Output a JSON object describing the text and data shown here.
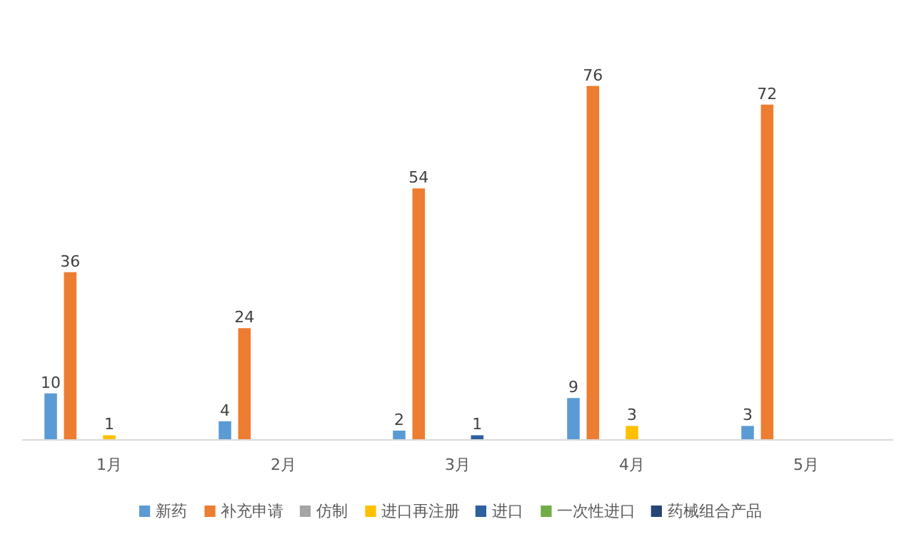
{
  "chart_data": {
    "type": "bar",
    "categories": [
      "1月",
      "2月",
      "3月",
      "4月",
      "5月"
    ],
    "series": [
      {
        "name": "新药",
        "color": "#5b9bd5",
        "values": [
          10,
          4,
          2,
          9,
          3
        ]
      },
      {
        "name": "补充申请",
        "color": "#ed7d31",
        "values": [
          36,
          24,
          54,
          76,
          72
        ]
      },
      {
        "name": "仿制",
        "color": "#a5a5a5",
        "values": [
          null,
          null,
          null,
          null,
          null
        ]
      },
      {
        "name": "进口再注册",
        "color": "#ffc000",
        "values": [
          1,
          null,
          null,
          3,
          null
        ]
      },
      {
        "name": "进口",
        "color": "#2e5f9e",
        "values": [
          null,
          null,
          1,
          null,
          null
        ]
      },
      {
        "name": "一次性进口",
        "color": "#70ad47",
        "values": [
          null,
          null,
          null,
          null,
          null
        ]
      },
      {
        "name": "药械组合产品",
        "color": "#264478",
        "values": [
          null,
          null,
          null,
          null,
          null
        ]
      }
    ],
    "data_labels": true,
    "legend": "bottom",
    "grid": false,
    "tick_labels": "x"
  }
}
